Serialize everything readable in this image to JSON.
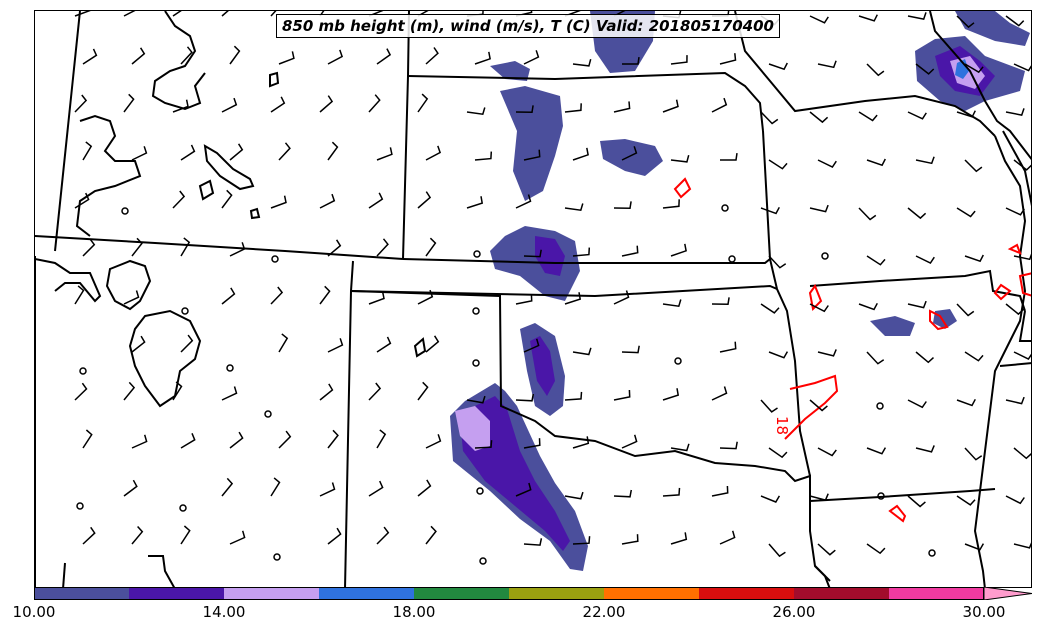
{
  "title": "850 mb height (m), wind (m/s), T (C) Valid: 201805170400",
  "contour_label": "18",
  "colorbar": {
    "levels": [
      10,
      12,
      14,
      16,
      18,
      20,
      22,
      24,
      26,
      28,
      30
    ],
    "colors": [
      "#4b4f9c",
      "#4a16a8",
      "#c59ff0",
      "#2f72de",
      "#22893f",
      "#9aa010",
      "#ff7000",
      "#d80e0e",
      "#a20c2c",
      "#f03aa0",
      "#ff9ccd"
    ],
    "tick_labels": [
      "10.00",
      "14.00",
      "18.00",
      "22.00",
      "26.00",
      "30.00"
    ],
    "tick_values": [
      10,
      14,
      18,
      22,
      26,
      30
    ],
    "extend": "max"
  },
  "legend_colors": {
    "boundaries": "#000000",
    "temperature_contour": "#ff0000",
    "wind_barbs": "#000000"
  }
}
